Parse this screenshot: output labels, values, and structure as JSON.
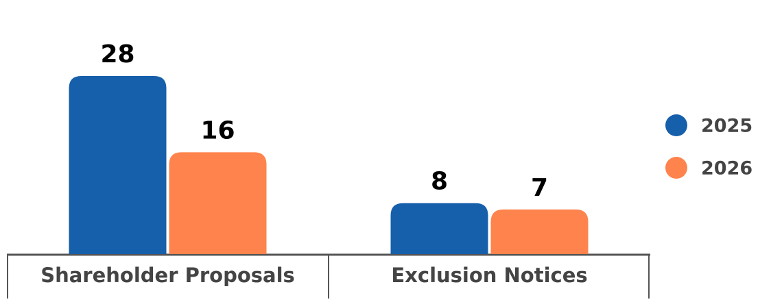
{
  "chart_data": {
    "type": "bar",
    "categories": [
      "Shareholder Proposals",
      "Exclusion Notices"
    ],
    "series": [
      {
        "name": "2025",
        "color": "#165fab",
        "values": [
          28,
          8
        ]
      },
      {
        "name": "2026",
        "color": "#ff834c",
        "values": [
          16,
          7
        ]
      }
    ],
    "legend": "right"
  }
}
